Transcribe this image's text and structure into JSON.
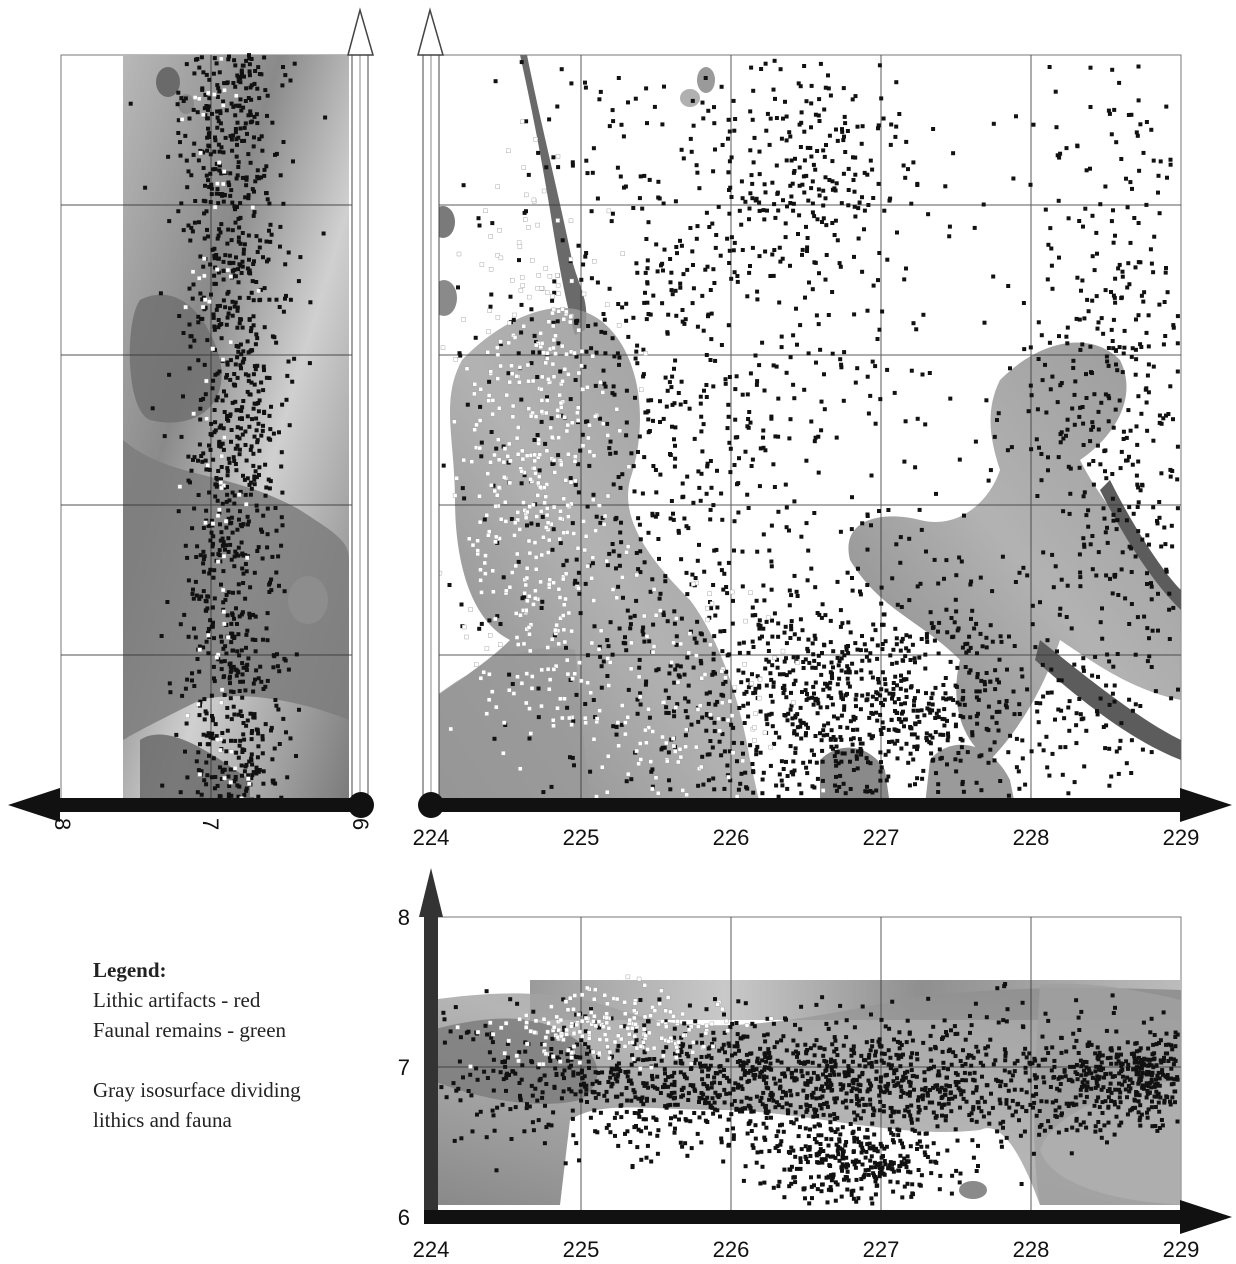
{
  "legend": {
    "title": "Legend:",
    "lines": [
      "Lithic artifacts - red",
      "Faunal remains - green",
      "Gray isosurface dividing",
      "lithics and fauna"
    ]
  },
  "chart_data": [
    {
      "type": "scatter",
      "view": "side elevation (left panel)",
      "title": "",
      "xlabel": "",
      "ylabel": "",
      "xlim": [
        8,
        6
      ],
      "x_ticks": [
        "8",
        "7",
        "6"
      ],
      "grid": true,
      "series": [
        {
          "name": "Lithic artifacts",
          "color": "#111111",
          "approx_count": 2200,
          "x_center": 6.85,
          "x_spread": 0.18
        },
        {
          "name": "Faunal remains",
          "color": "#ffffff",
          "approx_count": 150,
          "x_center": 6.95,
          "x_spread": 0.12
        }
      ]
    },
    {
      "type": "scatter",
      "view": "plan view (top-right panel)",
      "title": "",
      "xlabel": "",
      "ylabel": "",
      "xlim": [
        224,
        229
      ],
      "x_ticks": [
        "224",
        "225",
        "226",
        "227",
        "228",
        "229"
      ],
      "grid": true,
      "clusters": [
        {
          "series": "Lithic artifacts",
          "x_center": 226.5,
          "x_spread": 0.3,
          "row_center": 0.15,
          "row_spread": 0.08,
          "count": 200
        },
        {
          "series": "Lithic artifacts",
          "x_center": 228.6,
          "x_spread": 0.35,
          "row_center": 0.45,
          "row_spread": 0.25,
          "count": 500
        },
        {
          "series": "Lithic artifacts",
          "x_center": 225.5,
          "x_spread": 0.6,
          "row_center": 0.55,
          "row_spread": 0.3,
          "count": 700
        },
        {
          "series": "Lithic artifacts",
          "x_center": 226.9,
          "x_spread": 0.7,
          "row_center": 0.88,
          "row_spread": 0.08,
          "count": 900
        },
        {
          "series": "Lithic artifacts",
          "x_center": 226.5,
          "x_spread": 0.9,
          "row_center": 0.4,
          "row_spread": 0.25,
          "count": 300
        },
        {
          "series": "Faunal remains",
          "x_center": 224.7,
          "x_spread": 0.25,
          "row_center": 0.55,
          "row_spread": 0.18,
          "count": 450
        },
        {
          "series": "Faunal remains",
          "x_center": 225.6,
          "x_spread": 0.4,
          "row_center": 0.88,
          "row_spread": 0.08,
          "count": 150
        }
      ]
    },
    {
      "type": "scatter",
      "view": "front elevation (bottom panel)",
      "title": "",
      "xlabel": "",
      "ylabel": "",
      "xlim": [
        224,
        229
      ],
      "ylim": [
        6,
        8
      ],
      "x_ticks": [
        "224",
        "225",
        "226",
        "227",
        "228",
        "229"
      ],
      "y_ticks": [
        "8",
        "7",
        "6"
      ],
      "grid": true,
      "clusters": [
        {
          "series": "Lithic artifacts",
          "x_center": 226.5,
          "x_spread": 1.3,
          "y_center": 6.9,
          "y_spread": 0.22,
          "count": 1500
        },
        {
          "series": "Lithic artifacts",
          "x_center": 226.8,
          "x_spread": 0.3,
          "y_center": 6.35,
          "y_spread": 0.12,
          "count": 300
        },
        {
          "series": "Lithic artifacts",
          "x_center": 228.7,
          "x_spread": 0.3,
          "y_center": 6.95,
          "y_spread": 0.15,
          "count": 350
        },
        {
          "series": "Faunal remains",
          "x_center": 225.2,
          "x_spread": 0.4,
          "y_center": 7.25,
          "y_spread": 0.12,
          "count": 200
        }
      ]
    }
  ]
}
